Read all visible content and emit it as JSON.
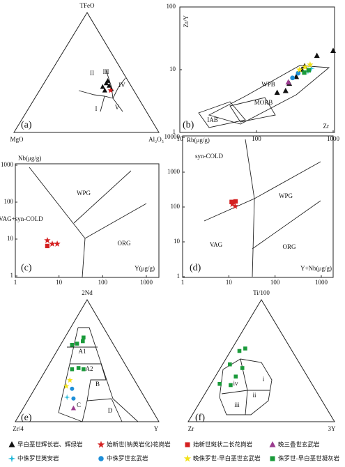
{
  "chart_data": [
    {
      "type": "ternary",
      "panel_label": "(a)",
      "top_label": "TFeO",
      "left_label": "MgO",
      "right_label": "Al₂O₃",
      "annotations": [
        "I",
        "II",
        "III",
        "IV",
        "V"
      ],
      "series": [
        {
          "marker": "triangle",
          "color": "#111111",
          "values": [
            [
              38,
              20,
              42
            ],
            [
              41,
              16,
              43
            ],
            [
              39,
              15,
              46
            ],
            [
              35,
              20,
              45
            ],
            [
              36,
              15,
              49
            ],
            [
              43,
              14,
              43
            ]
          ]
        },
        {
          "marker": "star",
          "color": "#d42020",
          "values": [
            [
              35,
              16,
              49
            ]
          ]
        }
      ]
    },
    {
      "type": "scatter",
      "panel_label": "(b)",
      "x_label": "Zr",
      "y_label": "Zr/Y",
      "log_x": true,
      "log_y": true,
      "xlim": [
        10,
        1000
      ],
      "ylim": [
        1,
        100
      ],
      "xticks": [
        10,
        100,
        1000
      ],
      "yticks": [
        1,
        10,
        100
      ],
      "annotations": [
        "WPB",
        "MORB",
        "IAB"
      ],
      "series": [
        {
          "marker": "triangle",
          "color": "#111111",
          "x": [
            186,
            240,
            268,
            330,
            390,
            425,
            614,
            1000
          ],
          "values": [
            4.3,
            4.6,
            6.0,
            7.7,
            10,
            11.4,
            16.7,
            20
          ]
        },
        {
          "marker": "triangle",
          "color": "#9b3d8f",
          "x": [
            260
          ],
          "values": [
            6.3
          ]
        },
        {
          "marker": "circle",
          "color": "#1e8fd8",
          "x": [
            295,
            350
          ],
          "values": [
            7.4,
            8.8
          ]
        },
        {
          "marker": "cross",
          "color": "#22b8d8",
          "x": [
            470,
            520
          ],
          "values": [
            9.5,
            10.5
          ]
        },
        {
          "marker": "star",
          "color": "#f2e21a",
          "x": [
            365,
            430,
            500
          ],
          "values": [
            10,
            11,
            12
          ]
        },
        {
          "marker": "square",
          "color": "#1a9a3a",
          "x": [
            420,
            480
          ],
          "values": [
            9,
            9.8
          ]
        }
      ]
    },
    {
      "type": "scatter",
      "panel_label": "(c)",
      "x_label": "Y(μg/g)",
      "y_label": "Nb(μg/g)",
      "log_x": true,
      "log_y": true,
      "xlim": [
        1,
        1000
      ],
      "ylim": [
        1,
        1000
      ],
      "xticks": [
        1,
        10,
        100,
        1000
      ],
      "yticks": [
        1,
        10,
        100,
        1000
      ],
      "annotations": [
        "WPG",
        "VAG+syn-COLD",
        "ORG"
      ],
      "series": [
        {
          "marker": "star",
          "color": "#d42020",
          "x": [
            5.4,
            7.0,
            9.1
          ],
          "values": [
            9.2,
            7.4,
            7.4
          ]
        },
        {
          "marker": "square",
          "color": "#d42020",
          "x": [
            5.4
          ],
          "values": [
            6.5
          ]
        }
      ]
    },
    {
      "type": "scatter",
      "panel_label": "(d)",
      "x_label": "Y+Nb(μg/g)",
      "y_label": "Rb(μg/g)",
      "log_x": true,
      "log_y": true,
      "xlim": [
        1,
        1000
      ],
      "ylim": [
        1,
        10000
      ],
      "xticks": [
        1,
        10,
        100,
        1000
      ],
      "yticks": [
        1,
        10,
        100,
        1000,
        10000
      ],
      "annotations": [
        "syn-COLD",
        "WPG",
        "VAG",
        "ORG"
      ],
      "series": [
        {
          "marker": "star",
          "color": "#d42020",
          "x": [
            11.9,
            13.7
          ],
          "values": [
            120,
            105
          ]
        },
        {
          "marker": "square",
          "color": "#d42020",
          "x": [
            11.5,
            14
          ],
          "values": [
            140,
            145
          ]
        }
      ]
    },
    {
      "type": "ternary",
      "panel_label": "(e)",
      "top_label": "2Nd",
      "left_label": "Zr/4",
      "right_label": "Y",
      "annotations": [
        "A1",
        "A2",
        "B",
        "C",
        "D"
      ],
      "series": [
        {
          "marker": "square",
          "color": "#1a9a3a",
          "values": [
            [
              63,
              29,
              8
            ],
            [
              64,
              25,
              11
            ],
            [
              66,
              20,
              14
            ],
            [
              69,
              18,
              13
            ],
            [
              43,
              39,
              18
            ],
            [
              44,
              34,
              22
            ],
            [
              43,
              31,
              26
            ]
          ]
        },
        {
          "marker": "star",
          "color": "#f2e21a",
          "values": [
            [
              29,
              50,
              21
            ],
            [
              34,
              45,
              21
            ]
          ]
        },
        {
          "marker": "cross",
          "color": "#22b8d8",
          "values": [
            [
              20,
              54,
              26
            ]
          ]
        },
        {
          "marker": "circle",
          "color": "#1e8fd8",
          "values": [
            [
              27,
              47,
              26
            ],
            [
              19,
              50,
              31
            ]
          ]
        },
        {
          "marker": "triangle",
          "color": "#9b3d8f",
          "values": [
            [
              11,
              54,
              35
            ]
          ]
        }
      ]
    },
    {
      "type": "ternary",
      "panel_label": "(f)",
      "top_label": "Ti/100",
      "left_label": "Zr",
      "right_label": "3Y",
      "annotations": [
        "i",
        "ii",
        "iii",
        "iv"
      ],
      "series": [
        {
          "marker": "square",
          "color": "#1a9a3a",
          "values": [
            [
              58,
              36,
              6
            ],
            [
              60,
              31,
              9
            ],
            [
              47,
              48,
              5
            ],
            [
              44,
              41,
              15
            ],
            [
              31,
              63,
              6
            ],
            [
              30,
              56,
              14
            ],
            [
              37,
              49,
              14
            ]
          ]
        }
      ]
    }
  ],
  "legend": [
    {
      "label": "早白垩世辉长岩、辉绿岩",
      "marker": "triangle",
      "color": "#111111"
    },
    {
      "label": "始新世(钠英岩化)花岗岩",
      "marker": "star",
      "color": "#d42020"
    },
    {
      "label": "始新世斑状二长花岗岩",
      "marker": "square",
      "color": "#d42020"
    },
    {
      "label": "晚三叠世玄武岩",
      "marker": "triangle",
      "color": "#9b3d8f"
    },
    {
      "label": "中侏罗世英安岩",
      "marker": "cross",
      "color": "#22b8d8"
    },
    {
      "label": "中侏罗世玄武岩",
      "marker": "circle",
      "color": "#1e8fd8"
    },
    {
      "label": "晚侏罗世-早白垩世玄武岩",
      "marker": "star",
      "color": "#f2e21a"
    },
    {
      "label": "侏罗世-早白垩世凝灰岩",
      "marker": "square",
      "color": "#1a9a3a"
    }
  ]
}
